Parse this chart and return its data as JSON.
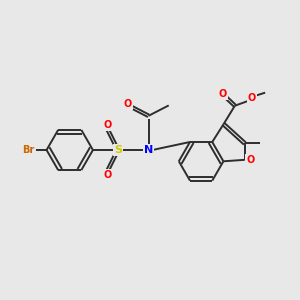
{
  "background_color": "#e8e8e8",
  "bond_color": "#2d2d2d",
  "atom_colors": {
    "O": "#ff0000",
    "N": "#0000ff",
    "S": "#cccc00",
    "Br": "#cc6600",
    "C": "#2d2d2d"
  },
  "figsize": [
    3.0,
    3.0
  ],
  "dpi": 100
}
